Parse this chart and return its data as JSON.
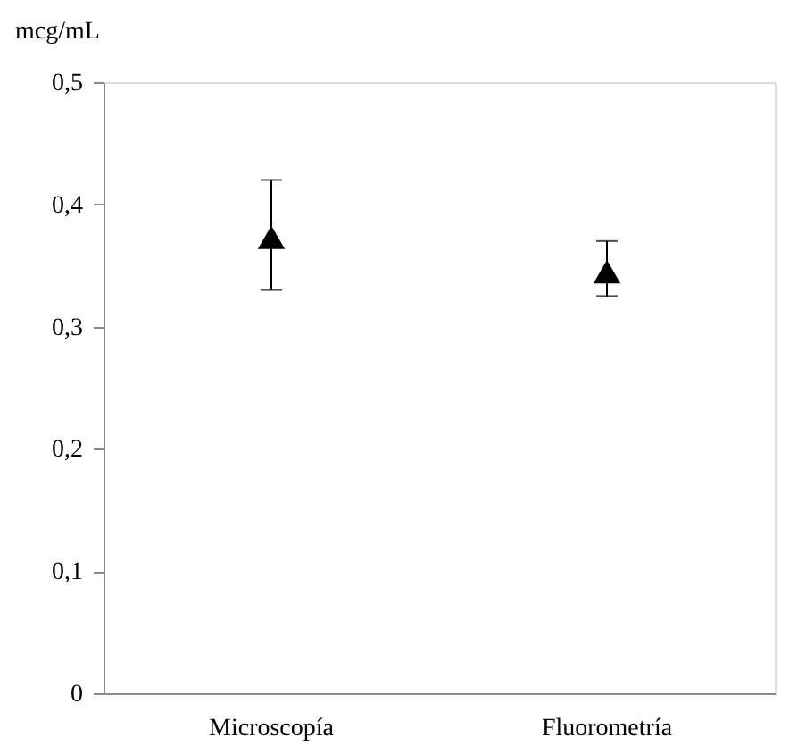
{
  "chart_data": {
    "type": "scatter",
    "ylabel": "mcg/mL",
    "categories": [
      "Microscopía",
      "Fluorometría"
    ],
    "values": [
      0.373,
      0.345
    ],
    "errors": [
      [
        0.33,
        0.42
      ],
      [
        0.325,
        0.37
      ]
    ],
    "color": "#000000",
    "marker": "triangle",
    "grid": false,
    "ylim": [
      0,
      0.5
    ],
    "yticks": [
      0,
      {
        "value": 0.1,
        "label": "0,1"
      },
      {
        "value": 0.2,
        "label": "0,2"
      },
      {
        "value": 0.3,
        "label": "0,3"
      },
      {
        "value": 0.4,
        "label": "0,4"
      },
      {
        "value": 0.5,
        "label": "0,5"
      }
    ]
  }
}
